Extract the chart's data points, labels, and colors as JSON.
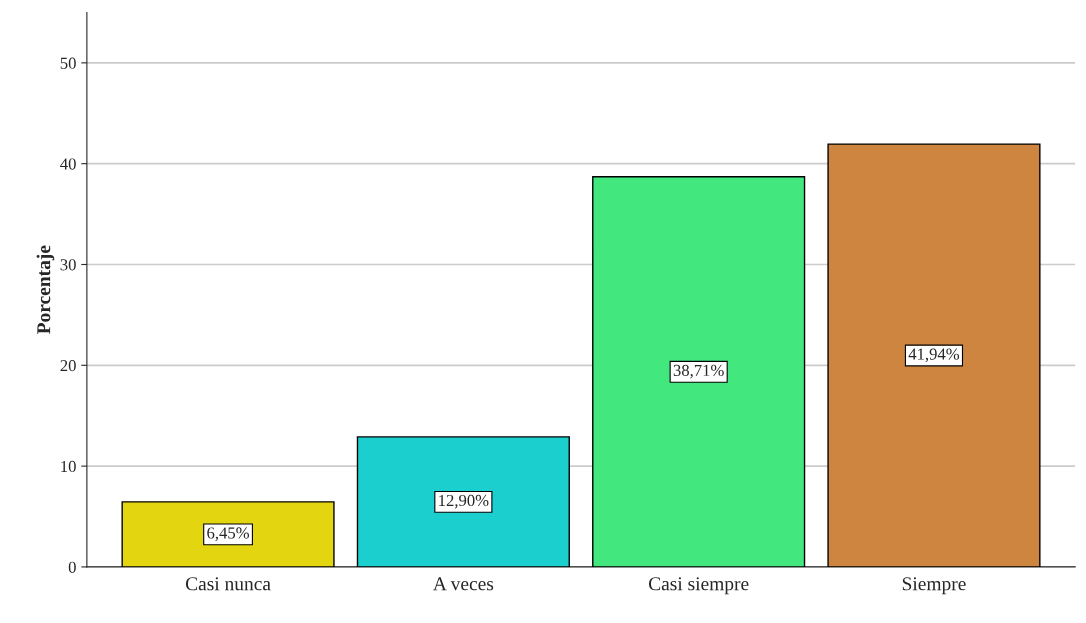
{
  "chart_data": {
    "type": "bar",
    "ylabel": "Porcentaje",
    "categories": [
      "Casi nunca",
      "A veces",
      "Casi siempre",
      "Siempre"
    ],
    "values": [
      6.45,
      12.9,
      38.71,
      41.94
    ],
    "colors": [
      "#e3d610",
      "#1ccfcf",
      "#42e87e",
      "#cd853f"
    ],
    "value_labels": [
      "6,45%",
      "12,90%",
      "38,71%",
      "41,94%"
    ],
    "ylim": [
      0,
      55
    ],
    "yticks": [
      0,
      10,
      20,
      30,
      40,
      50
    ],
    "grid": "y",
    "legend": false
  }
}
